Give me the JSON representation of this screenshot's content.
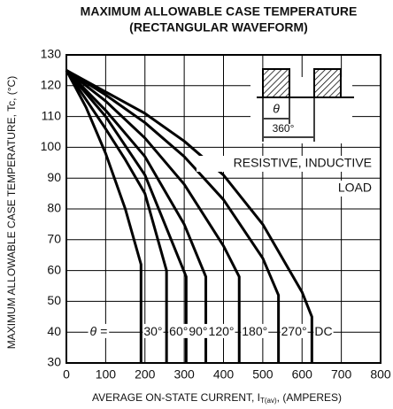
{
  "chart_data": {
    "type": "line",
    "title": "MAXIMUM ALLOWABLE CASE TEMPERATURE",
    "subtitle": "(RECTANGULAR WAVEFORM)",
    "x_label": "AVERAGE ON-STATE CURRENT, I",
    "x_label_sub": "T(av)",
    "x_label_end": ", (AMPERES)",
    "y_label": "MAXIMUM ALLOWABLE CASE TEMPERATURE, Tc, (°C)",
    "annotations": [
      "RESISTIVE, INDUCTIVE",
      "LOAD",
      "θ =",
      "θ",
      "360°"
    ],
    "color": "#000000",
    "grid": true,
    "xlim": [
      0,
      800
    ],
    "xticks": [
      0,
      100,
      200,
      300,
      400,
      500,
      600,
      700,
      800
    ],
    "ylim": [
      30,
      130
    ],
    "yticks": [
      30,
      40,
      50,
      60,
      70,
      80,
      90,
      100,
      110,
      120,
      130
    ],
    "series": [
      {
        "name": "30°",
        "x": [
          0,
          50,
          100,
          150,
          190,
          190
        ],
        "values": [
          125,
          113,
          98,
          80,
          62,
          30
        ]
      },
      {
        "name": "60°",
        "x": [
          0,
          100,
          150,
          200,
          255,
          255
        ],
        "values": [
          125,
          106,
          96,
          85,
          60,
          30
        ]
      },
      {
        "name": "90°",
        "x": [
          0,
          100,
          200,
          305,
          305
        ],
        "values": [
          125,
          110,
          91,
          58,
          30
        ]
      },
      {
        "name": "120°",
        "x": [
          0,
          100,
          200,
          300,
          355,
          355
        ],
        "values": [
          125,
          112,
          97,
          75,
          58,
          30
        ]
      },
      {
        "name": "180°",
        "x": [
          0,
          100,
          200,
          300,
          400,
          440,
          440
        ],
        "values": [
          125,
          115,
          103,
          88,
          68,
          58,
          30
        ]
      },
      {
        "name": "270°",
        "x": [
          0,
          100,
          200,
          300,
          400,
          500,
          540,
          540
        ],
        "values": [
          125,
          117,
          108,
          97,
          83,
          64,
          52,
          30
        ]
      },
      {
        "name": "DC",
        "x": [
          0,
          100,
          200,
          300,
          400,
          500,
          600,
          625,
          625
        ],
        "values": [
          125,
          118,
          111,
          102,
          91,
          75,
          53,
          45,
          30
        ]
      }
    ]
  }
}
